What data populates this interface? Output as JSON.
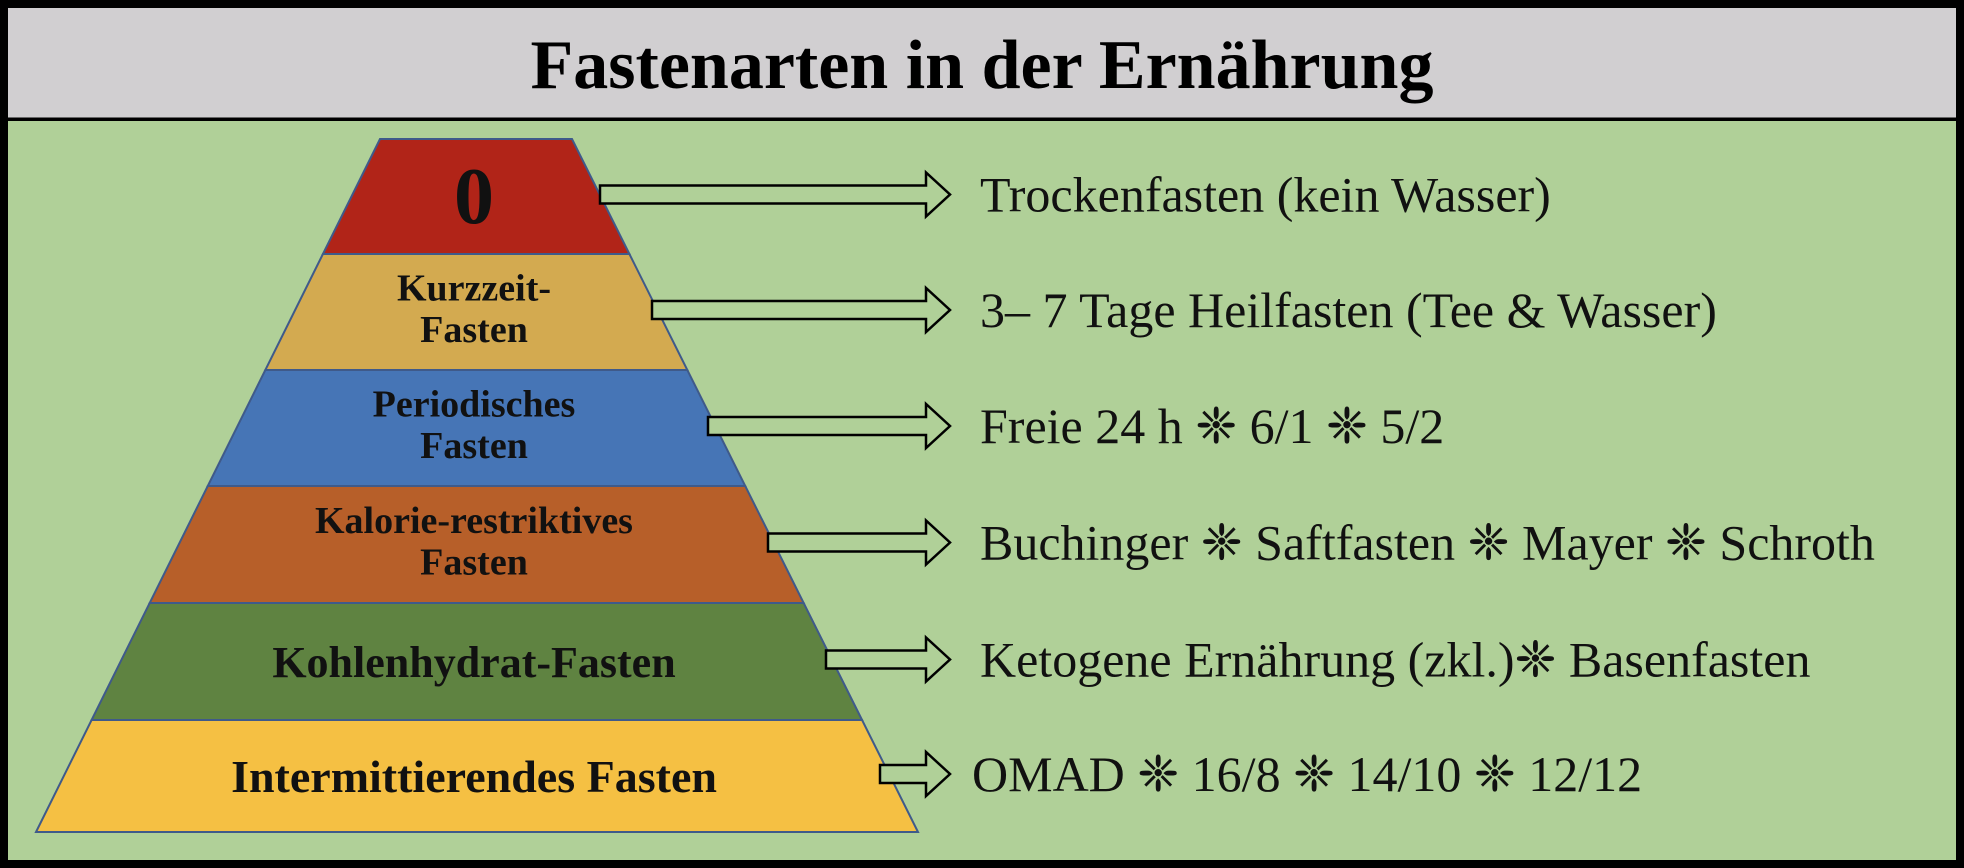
{
  "title": "Fastenarten in der Ernährung",
  "colors": {
    "header_bg": "#d1cfd1",
    "panel_bg": "#b0d098",
    "border": "#000000"
  },
  "levels": [
    {
      "label_lines": [
        "0"
      ],
      "color": "#b12418",
      "description": "Trockenfasten (kein Wasser)"
    },
    {
      "label_lines": [
        "Kurzzeit-",
        "Fasten"
      ],
      "color": "#d3aa50",
      "description": "3– 7 Tage Heilfasten (Tee & Wasser)"
    },
    {
      "label_lines": [
        "Periodisches",
        "Fasten"
      ],
      "color": "#4675b6",
      "description": "Freie 24 h ❈ 6/1 ❈ 5/2"
    },
    {
      "label_lines": [
        "Kalorie-restriktives",
        "Fasten"
      ],
      "color": "#b75f29",
      "description": "Buchinger ❈ Saftfasten ❈ Mayer ❈ Schroth"
    },
    {
      "label_lines": [
        "Kohlenhydrat-Fasten"
      ],
      "color": "#5f8341",
      "description": "Ketogene Ernährung (zkl.)❈ Basenfasten"
    },
    {
      "label_lines": [
        "Intermittierendes Fasten"
      ],
      "color": "#f5c043",
      "description": "OMAD ❈ 16/8 ❈ 14/10 ❈ 12/12"
    }
  ]
}
